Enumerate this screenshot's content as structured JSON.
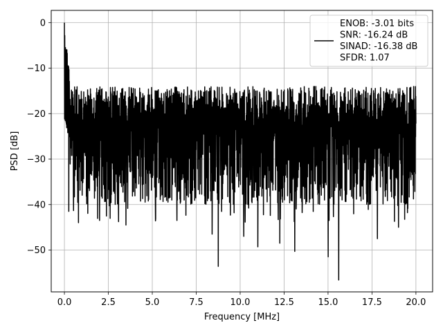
{
  "chart_data": {
    "type": "line",
    "xlabel": "Frequency [MHz]",
    "ylabel": "PSD [dB]",
    "xlim": [
      -0.75,
      20.95
    ],
    "ylim": [
      -59.2,
      2.7
    ],
    "xticks": [
      0.0,
      2.5,
      5.0,
      7.5,
      10.0,
      12.5,
      15.0,
      17.5,
      20.0
    ],
    "xtick_labels": [
      "0.0",
      "2.5",
      "5.0",
      "7.5",
      "10.0",
      "12.5",
      "15.0",
      "17.5",
      "20.0"
    ],
    "yticks": [
      0,
      -10,
      -20,
      -30,
      -40,
      -50
    ],
    "ytick_labels": [
      "0",
      "−10",
      "−20",
      "−30",
      "−40",
      "−50"
    ],
    "grid": true,
    "legend_position": "top-right",
    "legend_lines": [
      "ENOB: -3.01 bits",
      "SNR: -16.24 dB",
      "SINAD: -16.38 dB",
      "SFDR: 1.07"
    ],
    "line_color": "#000000",
    "series": [
      {
        "x_range": [
          0.0,
          20.0
        ],
        "n_points": 2000,
        "peak": {
          "x": 0.0,
          "y": 0.0
        },
        "typical_band_db": [
          -36,
          -13
        ],
        "notable_dips": [
          {
            "x": 0.25,
            "y": -41.5
          },
          {
            "x": 0.8,
            "y": -44
          },
          {
            "x": 2.0,
            "y": -43.5
          },
          {
            "x": 3.5,
            "y": -44.5
          },
          {
            "x": 6.4,
            "y": -43.5
          },
          {
            "x": 8.4,
            "y": -46.5
          },
          {
            "x": 8.75,
            "y": -53.6
          },
          {
            "x": 10.2,
            "y": -47
          },
          {
            "x": 11.0,
            "y": -49.3
          },
          {
            "x": 12.25,
            "y": -48.5
          },
          {
            "x": 13.1,
            "y": -50.3
          },
          {
            "x": 15.0,
            "y": -51.5
          },
          {
            "x": 15.6,
            "y": -56.6
          },
          {
            "x": 17.8,
            "y": -47.5
          },
          {
            "x": 19.0,
            "y": -45
          }
        ]
      }
    ]
  }
}
